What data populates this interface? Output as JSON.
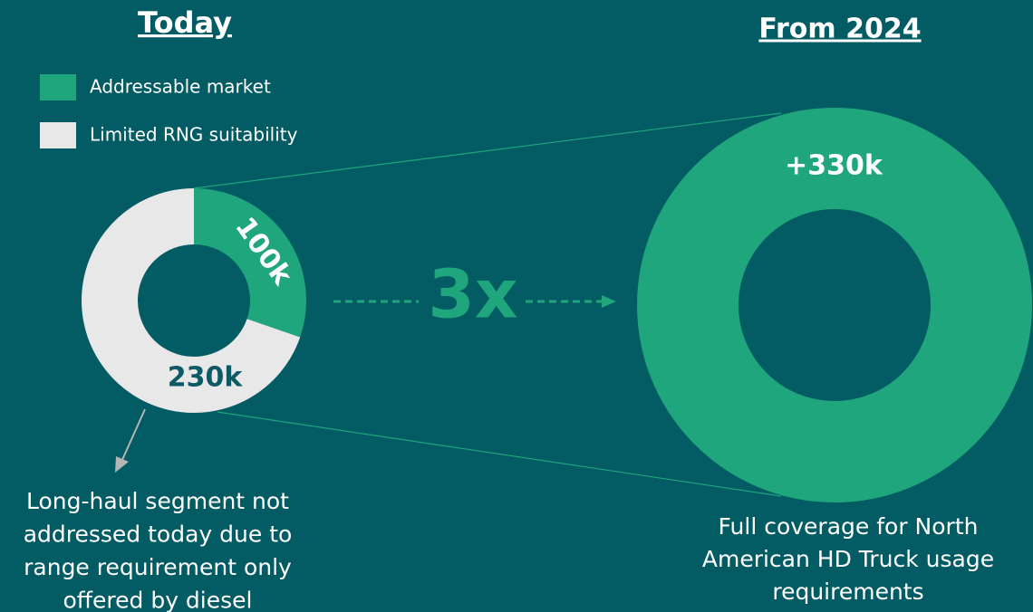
{
  "chart_data": [
    {
      "type": "pie",
      "title": "Today",
      "categories": [
        "Addressable market",
        "Limited RNG suitability"
      ],
      "values": [
        100,
        230
      ],
      "value_labels": [
        "100k",
        "230k"
      ],
      "colors": [
        "#1fa67d",
        "#e8e8e8"
      ],
      "caption": [
        "Long-haul segment not",
        "addressed today due to",
        "range requirement only",
        "offered by diesel"
      ]
    },
    {
      "type": "pie",
      "title": "From 2024",
      "values": [
        330
      ],
      "value_labels": [
        "+330k"
      ],
      "colors": [
        "#1fa67d"
      ],
      "caption": [
        "Full coverage for North",
        "American HD Truck usage",
        "requirements"
      ]
    }
  ],
  "comparison": {
    "label": "3x"
  }
}
